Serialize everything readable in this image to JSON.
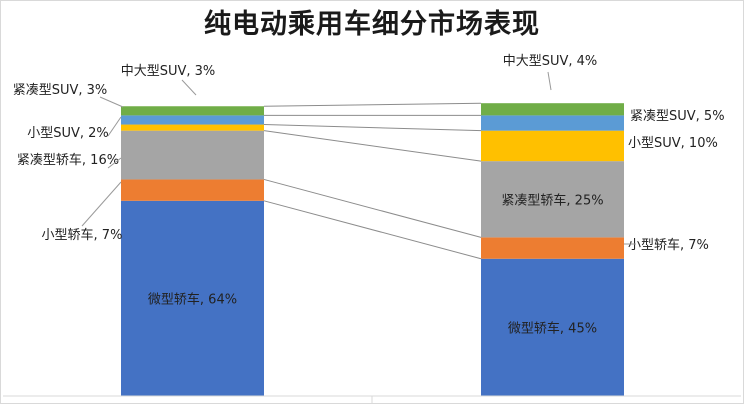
{
  "chart_data": {
    "type": "bar",
    "subtype": "stacked-100-percent",
    "title": "纯电动乘用车细分市场表现",
    "categories": [
      "",
      ""
    ],
    "series": [
      {
        "name": "微型轿车",
        "values": [
          64,
          45
        ],
        "color": "#4472c4",
        "labels": [
          "微型轿车, 64%",
          "微型轿车, 45%"
        ]
      },
      {
        "name": "小型轿车",
        "values": [
          7,
          7
        ],
        "color": "#ed7d31",
        "labels": [
          "小型轿车, 7%",
          "小型轿车, 7%"
        ]
      },
      {
        "name": "紧凑型轿车",
        "values": [
          16,
          25
        ],
        "color": "#a5a5a5",
        "labels": [
          "紧凑型轿车, 16%",
          "紧凑型轿车, 25%"
        ]
      },
      {
        "name": "小型SUV",
        "values": [
          2,
          10
        ],
        "color": "#ffc000",
        "labels": [
          "小型SUV, 2%",
          "小型SUV, 10%"
        ]
      },
      {
        "name": "紧凑型SUV",
        "values": [
          3,
          5
        ],
        "color": "#5b9bd5",
        "labels": [
          "紧凑型SUV, 3%",
          "紧凑型SUV, 5%"
        ]
      },
      {
        "name": "中大型SUV",
        "values": [
          3,
          4
        ],
        "color": "#70ad47",
        "labels": [
          "中大型SUV, 3%",
          "中大型SUV, 4%"
        ]
      }
    ],
    "ylim": [
      0,
      100
    ],
    "grid": false,
    "legend": "none"
  }
}
